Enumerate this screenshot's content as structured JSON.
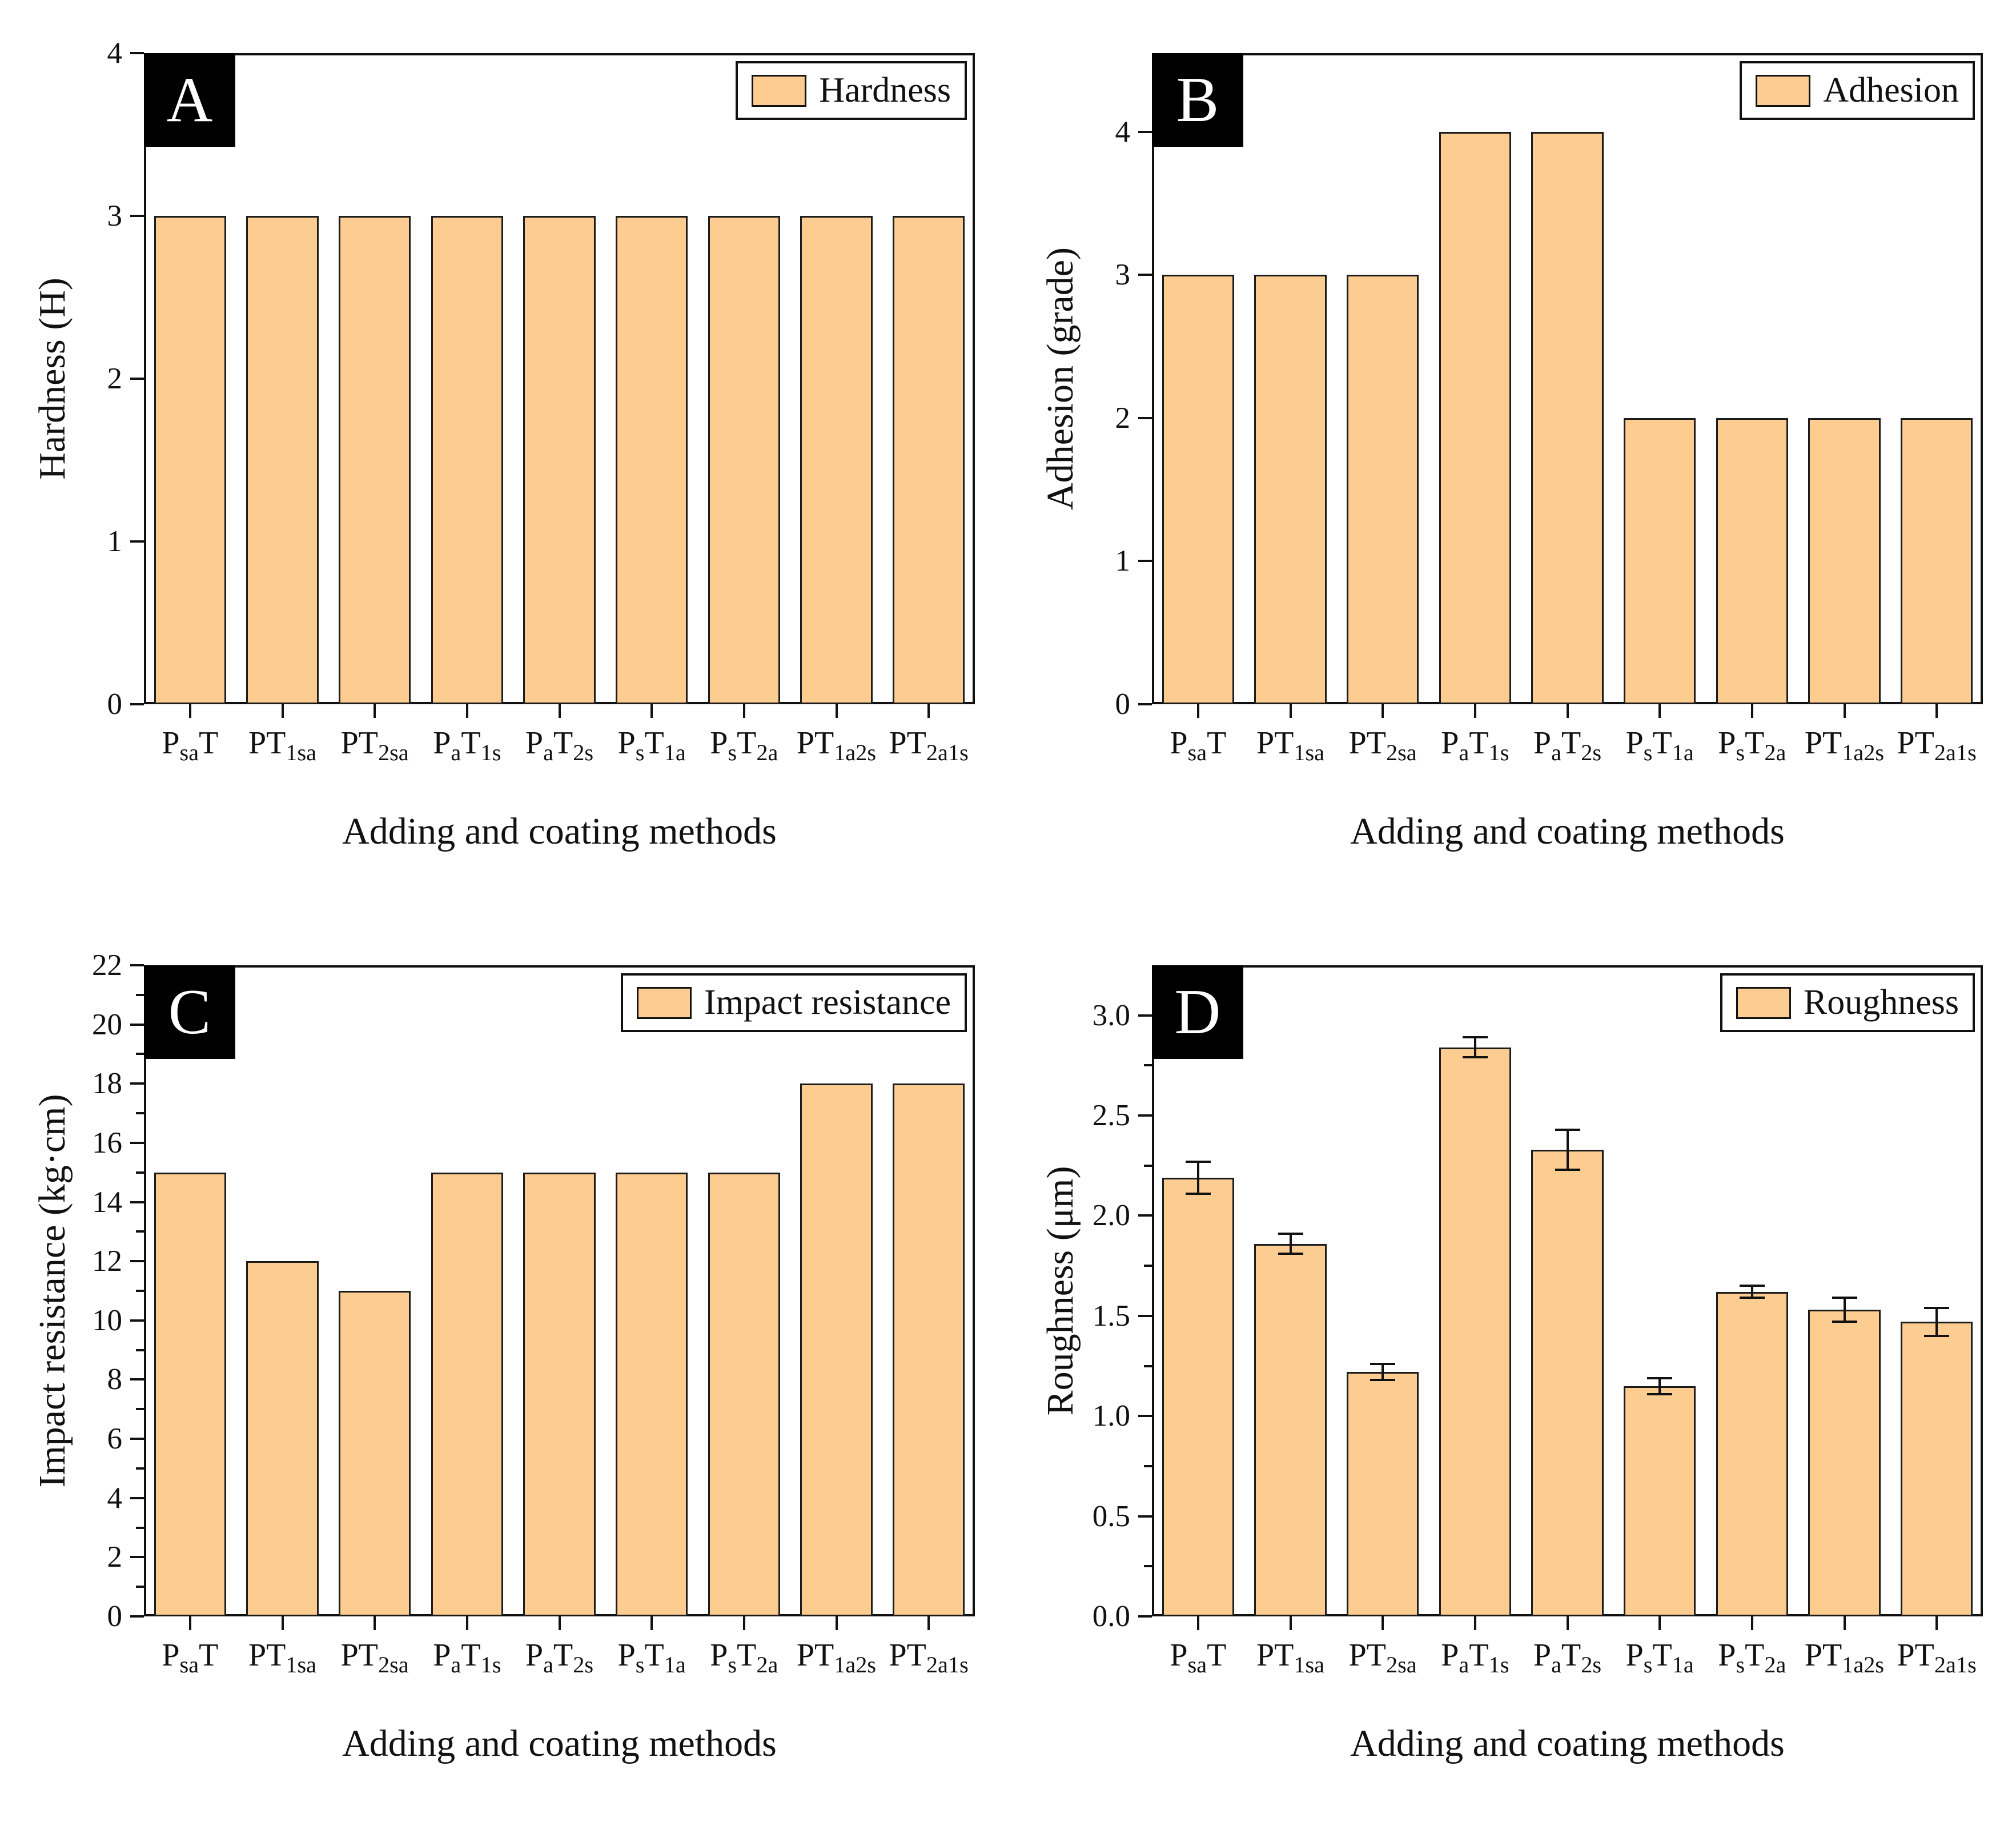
{
  "colors": {
    "bar_fill": "#FCCC90",
    "bar_edge": "#1C1C1C",
    "axis": "#111111",
    "panel_label_bg": "#000000",
    "panel_label_fg": "#FFFFFF"
  },
  "chart_data": [
    {
      "panel": "A",
      "type": "bar",
      "legend": "Hardness",
      "ylabel": "Hardness (H)",
      "xlabel": "Adding and coating methods",
      "categories": [
        "P_{sa}T",
        "PT_{1sa}",
        "PT_{2sa}",
        "P_{a}T_{1s}",
        "P_{a}T_{2s}",
        "P_{s}T_{1a}",
        "P_{s}T_{2a}",
        "PT_{1a2s}",
        "PT_{2a1s}"
      ],
      "values": [
        3,
        3,
        3,
        3,
        3,
        3,
        3,
        3,
        3
      ],
      "ylim": [
        0,
        4
      ],
      "yticks": [
        0,
        1,
        2,
        3,
        4
      ],
      "ytick_decimals": 0,
      "minor_step": null,
      "legend_position": "top-right",
      "grid": false
    },
    {
      "panel": "B",
      "type": "bar",
      "legend": "Adhesion",
      "ylabel": "Adhesion (grade)",
      "xlabel": "Adding and coating methods",
      "categories": [
        "P_{sa}T",
        "PT_{1sa}",
        "PT_{2sa}",
        "P_{a}T_{1s}",
        "P_{a}T_{2s}",
        "P_{s}T_{1a}",
        "P_{s}T_{2a}",
        "PT_{1a2s}",
        "PT_{2a1s}"
      ],
      "values": [
        3,
        3,
        3,
        4,
        4,
        2,
        2,
        2,
        2
      ],
      "ylim": [
        0,
        4.55
      ],
      "yticks": [
        0,
        1,
        2,
        3,
        4
      ],
      "ytick_decimals": 0,
      "minor_step": null,
      "legend_position": "top-right",
      "grid": false
    },
    {
      "panel": "C",
      "type": "bar",
      "legend": "Impact resistance",
      "ylabel": "Impact resistance (kg·cm)",
      "xlabel": "Adding and coating methods",
      "categories": [
        "P_{sa}T",
        "PT_{1sa}",
        "PT_{2sa}",
        "P_{a}T_{1s}",
        "P_{a}T_{2s}",
        "P_{s}T_{1a}",
        "P_{s}T_{2a}",
        "PT_{1a2s}",
        "PT_{2a1s}"
      ],
      "values": [
        15,
        12,
        11,
        15,
        15,
        15,
        15,
        18,
        18
      ],
      "ylim": [
        0,
        22
      ],
      "yticks": [
        0,
        2,
        4,
        6,
        8,
        10,
        12,
        14,
        16,
        18,
        20,
        22
      ],
      "ytick_decimals": 0,
      "minor_step": 1,
      "legend_position": "top-right",
      "grid": false
    },
    {
      "panel": "D",
      "type": "bar",
      "legend": "Roughness",
      "ylabel": "Roughness (μm)",
      "xlabel": "Adding and coating methods",
      "categories": [
        "P_{sa}T",
        "PT_{1sa}",
        "PT_{2sa}",
        "P_{a}T_{1s}",
        "P_{a}T_{2s}",
        "P_{s}T_{1a}",
        "P_{s}T_{2a}",
        "PT_{1a2s}",
        "PT_{2a1s}"
      ],
      "values": [
        2.19,
        1.86,
        1.22,
        2.84,
        2.33,
        1.15,
        1.62,
        1.53,
        1.47
      ],
      "errors": [
        0.08,
        0.05,
        0.04,
        0.05,
        0.1,
        0.04,
        0.03,
        0.06,
        0.07
      ],
      "ylim": [
        0,
        3.25
      ],
      "yticks": [
        0.0,
        0.5,
        1.0,
        1.5,
        2.0,
        2.5,
        3.0
      ],
      "ytick_decimals": 1,
      "minor_step": 0.25,
      "legend_position": "top-right",
      "grid": false
    }
  ]
}
